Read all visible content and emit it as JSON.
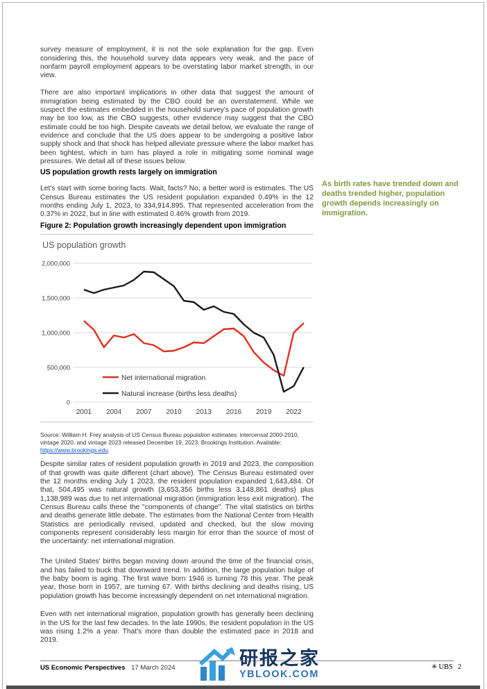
{
  "doc": {
    "p1": "survey measure of employment, it is not the sole explanation for the gap. Even considering this, the household survey data appears very weak, and the pace of nonfarm payroll employment appears to be overstating labor market strength, in our view.",
    "p2": "There are also important implications in other data that suggest the amount of immigration being estimated by the CBO could be an overstatement. While we suspect the estimates embedded in the household survey's pace of population growth may be too low, as the CBO suggests, other evidence may suggest that the CBO estimate could be too high. Despite caveats we detail below, we evaluate the range of evidence and conclude that the US does appear to be undergoing a positive labor supply shock and that shock has helped alleviate pressure where the labor market has been tightest, which in turn has played a role in mitigating some nominal wage pressures. We detail all of these issues below.",
    "heading": "US population growth rests largely on immigration",
    "p3": "Let's start with some boring facts. Wait, facts? No, a better word is estimates. The US Census Bureau estimates the US resident population expanded 0.49% in the 12 months ending July 1, 2023, to 334,914,895. That represented acceleration from the 0.37% in 2022, but in line with estimated 0.46% growth from 2019.",
    "side_note": "As birth rates have trended down and deaths trended higher, population growth depends increasingly on immigration.",
    "figure_title": "Figure 2: Population growth increasingly dependent upon immigration",
    "source_prefix": "Source: William H. Frey analysis of US Census Bureau population estimates: intercensal 2000-2010, vintage 2020, and vintage 2023 released December 19, 2023. Brookings Institution. Available: ",
    "source_link": "https://www.brookings.edu",
    "source_suffix": ".",
    "p4": "Despite similar rates of resident population growth in 2019 and 2023, the composition of that growth was quite different (chart above). The Census Bureau estimated over the 12 months ending July 1 2023, the resident population expanded 1,643,484. Of that, 504,495 was natural growth (3,653,356 births less 3,148,861 deaths) plus 1,138,989 was due to net international migration (immigration less exit migration). The Census Bureau calls these the \"components of change\". The vital statistics on births and deaths generate little debate. The estimates from the National Center from Health Statistics are periodically revised, updated and checked, but the slow moving components represent considerably less margin for error than the source of most of the uncertainty: net international migration.",
    "p5": "The United States' births began moving down around the time of the financial crisis, and has failed to buck that downward trend. In addition, the large population bulge of the baby boom is aging. The first wave born 1946 is turning 78 this year. The peak year, those born in 1957, are turning 67. With births declining and deaths rising, US population growth has become increasingly dependent on net international migration.",
    "p6": "Even with net international migration, population growth has generally been declining in the US for the last few decades. In the late 1990s, the resident population in the US was rising 1.2% a year. That's more than double the estimated pace in 2018 and 2019."
  },
  "footer": {
    "publication": "US Economic Perspectives",
    "date": "17 March 2024",
    "brand": "UBS",
    "brand_symbol": "✳",
    "page_number": "2"
  },
  "watermark": {
    "cn": "研报之家",
    "en": "YBLOOK.COM"
  },
  "colors": {
    "side_note_green": "#7f9a3d",
    "migration_red": "#e0301e",
    "natural_black": "#1a1a1a",
    "link_blue": "#1155cc",
    "watermark_navy": "#17375e",
    "watermark_blue": "#2e75b6"
  },
  "chart_data": {
    "type": "line",
    "title": "US population growth",
    "x": [
      2001,
      2002,
      2003,
      2004,
      2005,
      2006,
      2007,
      2008,
      2009,
      2010,
      2011,
      2012,
      2013,
      2014,
      2015,
      2016,
      2017,
      2018,
      2019,
      2020,
      2021,
      2022,
      2023
    ],
    "series": [
      {
        "name": "Net international migration",
        "color": "#e0301e",
        "values": [
          1170000,
          1040000,
          790000,
          960000,
          930000,
          980000,
          850000,
          820000,
          730000,
          740000,
          790000,
          860000,
          850000,
          950000,
          1050000,
          1060000,
          950000,
          720000,
          570000,
          460000,
          380000,
          1000000,
          1138989
        ]
      },
      {
        "name": "Natural increase (births less deaths)",
        "color": "#1a1a1a",
        "values": [
          1620000,
          1570000,
          1620000,
          1650000,
          1680000,
          1760000,
          1880000,
          1870000,
          1770000,
          1670000,
          1460000,
          1440000,
          1330000,
          1380000,
          1300000,
          1270000,
          1120000,
          1000000,
          930000,
          680000,
          150000,
          230000,
          504495
        ]
      }
    ],
    "ylim": [
      0,
      2000000
    ],
    "ytick_values": [
      0,
      500000,
      1000000,
      1500000,
      2000000
    ],
    "ytick_labels": [
      "0",
      "500,000",
      "1,000,000",
      "1,500,000",
      "2,000,000"
    ],
    "xtick_labels": [
      "2001",
      "2004",
      "2007",
      "2010",
      "2013",
      "2016",
      "2019",
      "2022"
    ],
    "grid": "horizontal",
    "legend_position": "inside-lower-left"
  }
}
